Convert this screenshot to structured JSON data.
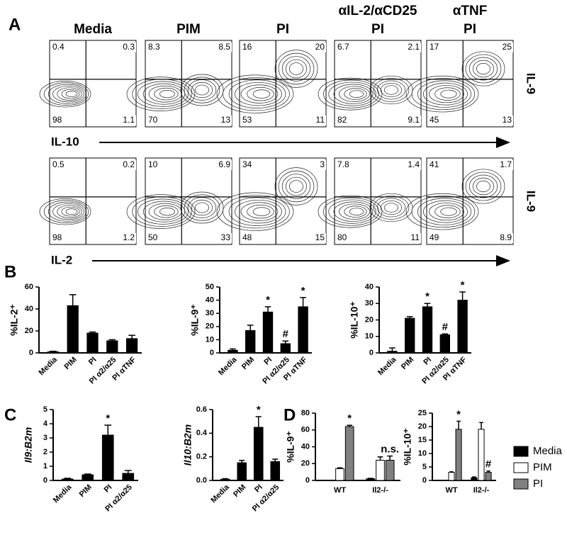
{
  "panel_labels": [
    "A",
    "B",
    "C",
    "D"
  ],
  "panel_a": {
    "columns": [
      {
        "title": "Media"
      },
      {
        "title": "PIM"
      },
      {
        "title": "PI"
      },
      {
        "title": "αIL-2/αCD25",
        "subtitle": "PI"
      },
      {
        "title": "αTNF",
        "subtitle": "PI"
      }
    ],
    "rows": [
      {
        "x_label": "IL-10",
        "y_label": "IL-9",
        "quadrants": [
          [
            0.4,
            0.3,
            98,
            1.1
          ],
          [
            8.3,
            8.5,
            70,
            13
          ],
          [
            16,
            20,
            53,
            11
          ],
          [
            6.7,
            2.1,
            82,
            9.1
          ],
          [
            17,
            25,
            45,
            13
          ]
        ]
      },
      {
        "x_label": "IL-2",
        "y_label": "IL-9",
        "quadrants": [
          [
            0.5,
            0.2,
            98,
            1.2
          ],
          [
            10,
            6.9,
            50,
            33
          ],
          [
            34,
            3,
            48,
            15
          ],
          [
            7.8,
            1.4,
            80,
            11
          ],
          [
            41,
            1.7,
            49,
            8.9
          ]
        ]
      }
    ]
  },
  "chart_data": [
    {
      "type": "bar",
      "ylabel": "%IL-2⁺",
      "categories": [
        "Media",
        "PIM",
        "PI",
        "PI α2/α25",
        "PI αTNF"
      ],
      "series": [
        {
          "color": "#000000",
          "values": [
            1,
            43,
            18,
            11,
            13
          ],
          "errors": [
            0.5,
            10,
            1,
            1,
            3
          ]
        }
      ],
      "ylim": [
        0,
        60
      ],
      "yticks": [
        0,
        20,
        40,
        60
      ]
    },
    {
      "type": "bar",
      "ylabel": "%IL-9⁺",
      "categories": [
        "Media",
        "PIM",
        "PI",
        "PI α2/α25",
        "PI αTNF"
      ],
      "series": [
        {
          "color": "#000000",
          "values": [
            2,
            17,
            31,
            7,
            35
          ],
          "errors": [
            1,
            4,
            4,
            2,
            7
          ],
          "annotations": [
            null,
            null,
            "*",
            "#",
            "*"
          ]
        }
      ],
      "ylim": [
        0,
        50
      ],
      "yticks": [
        0,
        10,
        20,
        30,
        40,
        50
      ]
    },
    {
      "type": "bar",
      "ylabel": "%IL-10⁺",
      "categories": [
        "Media",
        "PIM",
        "PI",
        "PI α2/α25",
        "PI αTNF"
      ],
      "series": [
        {
          "color": "#000000",
          "values": [
            1,
            21,
            28,
            11,
            32
          ],
          "errors": [
            2,
            1,
            2,
            0.5,
            5
          ],
          "annotations": [
            null,
            null,
            "*",
            "#",
            "*"
          ]
        }
      ],
      "ylim": [
        0,
        40
      ],
      "yticks": [
        0,
        10,
        20,
        30,
        40
      ]
    },
    {
      "type": "bar",
      "ylabel": "Il9:B2m",
      "categories": [
        "Media",
        "PIM",
        "PI",
        "PI α2/α25"
      ],
      "series": [
        {
          "color": "#000000",
          "values": [
            0.1,
            0.4,
            3.2,
            0.5
          ],
          "errors": [
            0.05,
            0.05,
            0.7,
            0.2
          ],
          "annotations": [
            null,
            null,
            "*",
            null
          ]
        }
      ],
      "ylim": [
        0,
        5
      ],
      "yticks": [
        0,
        1,
        2,
        3,
        4,
        5
      ]
    },
    {
      "type": "bar",
      "ylabel": "Il10:B2m",
      "categories": [
        "Media",
        "PIM",
        "PI",
        "PI α2/α25"
      ],
      "series": [
        {
          "color": "#000000",
          "values": [
            0.01,
            0.15,
            0.45,
            0.16
          ],
          "errors": [
            0.005,
            0.02,
            0.09,
            0.02
          ],
          "annotations": [
            null,
            null,
            "*",
            null
          ]
        }
      ],
      "ylim": [
        0,
        0.6
      ],
      "yticks": [
        {
          "value": 0,
          "label": "0.0"
        },
        0.2,
        0.4,
        0.6
      ]
    },
    {
      "type": "bar",
      "ylabel": "%IL-9⁺",
      "categories": [
        "WT",
        "Il2-/-"
      ],
      "series": [
        {
          "name": "Media",
          "color": "#000000",
          "values": [
            0,
            2
          ],
          "errors": [
            0,
            0.5
          ]
        },
        {
          "name": "PIM",
          "color": "#ffffff",
          "values": [
            14,
            24
          ],
          "errors": [
            1,
            4
          ]
        },
        {
          "name": "PI",
          "color": "#808080",
          "values": [
            64,
            24
          ],
          "errors": [
            1.5,
            5
          ],
          "annotations": [
            "*",
            "n.s."
          ]
        }
      ],
      "ylim": [
        0,
        80
      ],
      "yticks": [
        0,
        20,
        40,
        60,
        80
      ]
    },
    {
      "type": "bar",
      "ylabel": "%IL-10⁺",
      "categories": [
        "WT",
        "Il2-/-"
      ],
      "series": [
        {
          "color": "#000000",
          "values": [
            0,
            1
          ],
          "errors": [
            0,
            0.3
          ]
        },
        {
          "color": "#ffffff",
          "values": [
            3,
            19
          ],
          "errors": [
            0.2,
            2.5
          ]
        },
        {
          "color": "#808080",
          "values": [
            19,
            3
          ],
          "errors": [
            3,
            0.5
          ],
          "annotations": [
            "*",
            "#"
          ]
        }
      ],
      "ylim": [
        0,
        25
      ],
      "yticks": [
        0,
        5,
        10,
        15,
        20,
        25
      ]
    }
  ]
}
